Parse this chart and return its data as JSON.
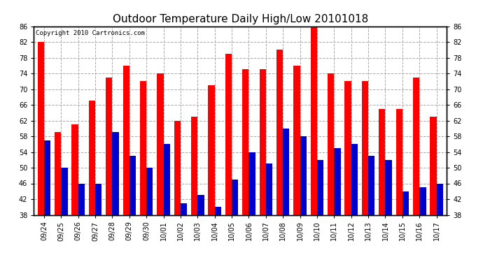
{
  "title": "Outdoor Temperature Daily High/Low 20101018",
  "copyright": "Copyright 2010 Cartronics.com",
  "categories": [
    "09/24",
    "09/25",
    "09/26",
    "09/27",
    "09/28",
    "09/29",
    "09/30",
    "10/01",
    "10/02",
    "10/03",
    "10/04",
    "10/05",
    "10/06",
    "10/07",
    "10/08",
    "10/09",
    "10/10",
    "10/11",
    "10/12",
    "10/13",
    "10/14",
    "10/15",
    "10/16",
    "10/17"
  ],
  "highs": [
    82,
    59,
    61,
    67,
    73,
    76,
    72,
    74,
    62,
    63,
    71,
    79,
    75,
    75,
    80,
    76,
    86,
    74,
    72,
    72,
    65,
    65,
    73,
    63
  ],
  "lows": [
    57,
    50,
    46,
    46,
    59,
    53,
    50,
    56,
    41,
    43,
    40,
    47,
    54,
    51,
    60,
    58,
    52,
    55,
    56,
    53,
    52,
    44,
    45,
    46
  ],
  "bar_color_high": "#FF0000",
  "bar_color_low": "#0000CC",
  "background_color": "#FFFFFF",
  "plot_bg_color": "#FFFFFF",
  "grid_color": "#AAAAAA",
  "ylim_min": 38.0,
  "ylim_max": 86.0,
  "yticks": [
    38.0,
    42.0,
    46.0,
    50.0,
    54.0,
    58.0,
    62.0,
    66.0,
    70.0,
    74.0,
    78.0,
    82.0,
    86.0
  ],
  "title_fontsize": 11,
  "tick_fontsize": 7,
  "copyright_fontsize": 6.5,
  "bar_width": 0.38
}
